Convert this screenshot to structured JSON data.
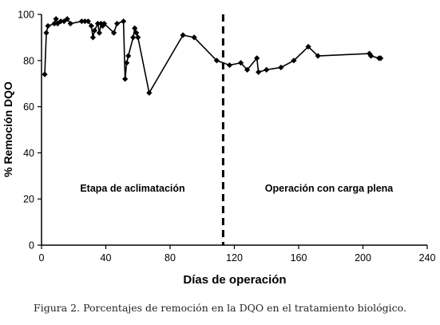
{
  "caption": "Figura 2. Porcentajes de remoción en la DQO en el tratamiento biológico.",
  "chart_data": {
    "type": "line",
    "title": "",
    "xlabel": "Días de operación",
    "ylabel": "% Remoción DQO",
    "xlim": [
      0,
      240
    ],
    "ylim": [
      0,
      100
    ],
    "x_ticks": [
      0,
      40,
      80,
      120,
      160,
      200,
      240
    ],
    "y_ticks": [
      0,
      20,
      40,
      60,
      80,
      100
    ],
    "grid": false,
    "legend": "none",
    "series": [
      {
        "marker": "diamond",
        "color": "#000000",
        "x": [
          2,
          3,
          4,
          8,
          9,
          10,
          12,
          14,
          16,
          18,
          25,
          27,
          29,
          31,
          32,
          33,
          35,
          36,
          37,
          38,
          39,
          45,
          47,
          51,
          52,
          53,
          54,
          57,
          58,
          59,
          60,
          67,
          88,
          95,
          109,
          117,
          124,
          128,
          134,
          135,
          140,
          149,
          157,
          166,
          172,
          204,
          205,
          210,
          211
        ],
        "y": [
          74,
          92,
          95,
          96,
          98,
          96,
          97,
          97,
          98,
          96,
          97,
          97,
          97,
          95,
          90,
          93,
          96,
          92,
          96,
          95,
          96,
          92,
          96,
          97,
          72,
          79,
          82,
          90,
          94,
          92,
          90,
          66,
          91,
          90,
          80,
          78,
          79,
          76,
          81,
          75,
          76,
          77,
          80,
          86,
          82,
          83,
          82,
          81,
          81
        ]
      }
    ],
    "vline": {
      "x": 113,
      "style": "dashed"
    },
    "annotations": [
      "Etapa de aclimatación",
      "Operación con carga plena"
    ]
  }
}
